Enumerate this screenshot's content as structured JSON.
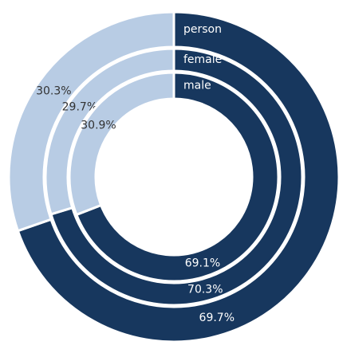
{
  "chart_data": {
    "type": "donut",
    "colors": [
      "#17375e",
      "#b8cce4"
    ],
    "series": [
      {
        "name": "person",
        "values": [
          69.7,
          30.3
        ],
        "value_labels": [
          "69.7%",
          "30.3%"
        ]
      },
      {
        "name": "female",
        "values": [
          70.3,
          29.7
        ],
        "value_labels": [
          "70.3%",
          "29.7%"
        ]
      },
      {
        "name": "male",
        "values": [
          69.1,
          30.9
        ],
        "value_labels": [
          "69.1%",
          "30.9%"
        ]
      }
    ]
  }
}
